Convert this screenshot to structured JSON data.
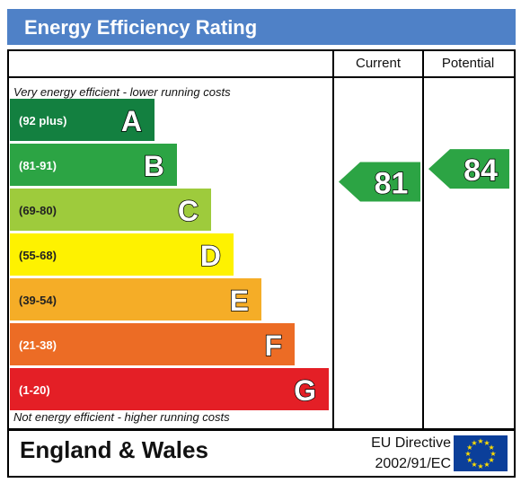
{
  "title": "Energy Efficiency Rating",
  "headers": {
    "current": "Current",
    "potential": "Potential"
  },
  "notes": {
    "top": "Very energy efficient - lower running costs",
    "bottom": "Not energy efficient - higher running costs"
  },
  "footer": {
    "region": "England & Wales",
    "directive_line1": "EU Directive",
    "directive_line2": "2002/91/EC"
  },
  "chart_data": {
    "type": "bar",
    "bands": [
      {
        "letter": "A",
        "range": "(92 plus)",
        "color": "#138040"
      },
      {
        "letter": "B",
        "range": "(81-91)",
        "color": "#2ca444"
      },
      {
        "letter": "C",
        "range": "(69-80)",
        "color": "#9ecb3c"
      },
      {
        "letter": "D",
        "range": "(55-68)",
        "color": "#fef200"
      },
      {
        "letter": "E",
        "range": "(39-54)",
        "color": "#f5ad27"
      },
      {
        "letter": "F",
        "range": "(21-38)",
        "color": "#ec6c25"
      },
      {
        "letter": "G",
        "range": "(1-20)",
        "color": "#e41f26"
      }
    ],
    "current": {
      "value": 81,
      "band": "B",
      "color": "#2ca444"
    },
    "potential": {
      "value": 84,
      "band": "B",
      "color": "#2ca444"
    }
  }
}
